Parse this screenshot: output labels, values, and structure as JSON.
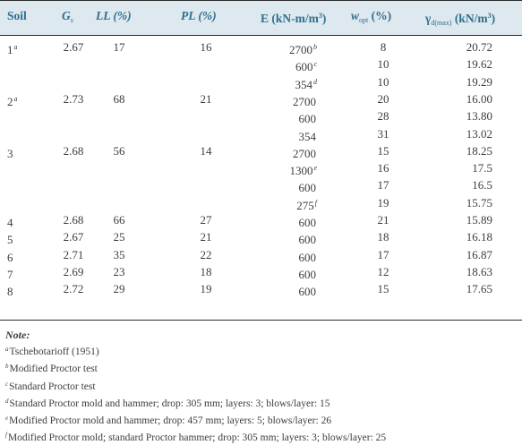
{
  "headers": {
    "soil": "Soil",
    "gs_main": "G",
    "gs_sub": "s",
    "ll": "LL (%)",
    "pl": "PL (%)",
    "e_main": "E (kN-m/m",
    "e_sup": "3",
    "e_end": ")",
    "w_main": "w",
    "w_sub": "opt",
    "w_unit": "(%)",
    "g_main": "γ",
    "g_sub": "d(max)",
    "g_unit": "(kN/m",
    "g_sup": "3",
    "g_end": ")"
  },
  "rows": [
    {
      "soil": "1",
      "soil_sup": "a",
      "gs": "2.67",
      "ll": "17",
      "pl": "16",
      "e": "2700",
      "e_sup": "b",
      "w": "8",
      "g": "20.72"
    },
    {
      "soil": "",
      "soil_sup": "",
      "gs": "",
      "ll": "",
      "pl": "",
      "e": "600",
      "e_sup": "c",
      "w": "10",
      "g": "19.62"
    },
    {
      "soil": "",
      "soil_sup": "",
      "gs": "",
      "ll": "",
      "pl": "",
      "e": "354",
      "e_sup": "d",
      "w": "10",
      "g": "19.29"
    },
    {
      "soil": "2",
      "soil_sup": "a",
      "gs": "2.73",
      "ll": "68",
      "pl": "21",
      "e": "2700",
      "e_sup": "",
      "w": "20",
      "g": "16.00"
    },
    {
      "soil": "",
      "soil_sup": "",
      "gs": "",
      "ll": "",
      "pl": "",
      "e": "600",
      "e_sup": "",
      "w": "28",
      "g": "13.80"
    },
    {
      "soil": "",
      "soil_sup": "",
      "gs": "",
      "ll": "",
      "pl": "",
      "e": "354",
      "e_sup": "",
      "w": "31",
      "g": "13.02"
    },
    {
      "soil": "3",
      "soil_sup": "",
      "gs": "2.68",
      "ll": "56",
      "pl": "14",
      "e": "2700",
      "e_sup": "",
      "w": "15",
      "g": "18.25"
    },
    {
      "soil": "",
      "soil_sup": "",
      "gs": "",
      "ll": "",
      "pl": "",
      "e": "1300",
      "e_sup": "e",
      "w": "16",
      "g": "17.5"
    },
    {
      "soil": "",
      "soil_sup": "",
      "gs": "",
      "ll": "",
      "pl": "",
      "e": "600",
      "e_sup": "",
      "w": "17",
      "g": "16.5"
    },
    {
      "soil": "",
      "soil_sup": "",
      "gs": "",
      "ll": "",
      "pl": "",
      "e": "275",
      "e_sup": "f",
      "w": "19",
      "g": "15.75"
    },
    {
      "soil": "4",
      "soil_sup": "",
      "gs": "2.68",
      "ll": "66",
      "pl": "27",
      "e": "600",
      "e_sup": "",
      "w": "21",
      "g": "15.89"
    },
    {
      "soil": "5",
      "soil_sup": "",
      "gs": "2.67",
      "ll": "25",
      "pl": "21",
      "e": "600",
      "e_sup": "",
      "w": "18",
      "g": "16.18"
    },
    {
      "soil": "6",
      "soil_sup": "",
      "gs": "2.71",
      "ll": "35",
      "pl": "22",
      "e": "600",
      "e_sup": "",
      "w": "17",
      "g": "16.87"
    },
    {
      "soil": "7",
      "soil_sup": "",
      "gs": "2.69",
      "ll": "23",
      "pl": "18",
      "e": "600",
      "e_sup": "",
      "w": "12",
      "g": "18.63"
    },
    {
      "soil": "8",
      "soil_sup": "",
      "gs": "2.72",
      "ll": "29",
      "pl": "19",
      "e": "600",
      "e_sup": "",
      "w": "15",
      "g": "17.65"
    }
  ],
  "notes": {
    "title": "Note:",
    "items": [
      {
        "mark": "a",
        "text": "Tschebotarioff (1951)"
      },
      {
        "mark": "b",
        "text": "Modified Proctor test"
      },
      {
        "mark": "c",
        "text": "Standard Proctor test"
      },
      {
        "mark": "d",
        "text": "Standard Proctor mold and hammer; drop: 305 mm; layers: 3; blows/layer: 15"
      },
      {
        "mark": "e",
        "text": "Modified Proctor mold and hammer; drop: 457 mm; layers: 5; blows/layer: 26"
      },
      {
        "mark": "f",
        "text": "Modified Proctor mold; standard Proctor hammer; drop: 305 mm; layers: 3; blows/layer: 25"
      }
    ]
  }
}
